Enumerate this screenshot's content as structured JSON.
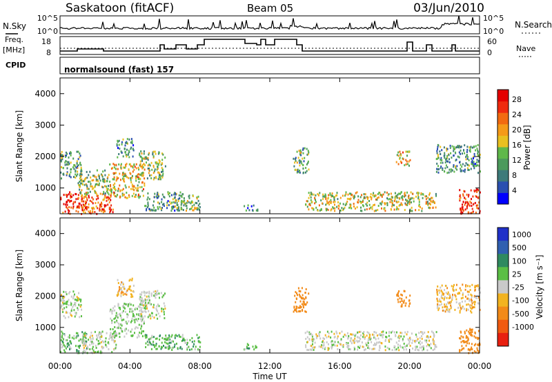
{
  "header": {
    "station": "Saskatoon (fitACF)",
    "beam": "Beam 05",
    "date": "03/Jun/2010"
  },
  "top_panels": {
    "nsky_label": "N.Sky",
    "nsearch_label": "N.Search",
    "noise_ticks_left": [
      "10^5",
      "10^0"
    ],
    "noise_ticks_right": [
      "10^5",
      "10^0"
    ],
    "freq_label_line1": "Freq.",
    "freq_label_line2": "[MHz]",
    "freq_ticks": [
      "18",
      "8"
    ],
    "nave_label": "Nave",
    "nave_ticks": [
      "60",
      "0"
    ],
    "cpid_label": "CPID",
    "cpid_value": "normalsound (fast) 157"
  },
  "x_axis": {
    "label": "Time UT",
    "ticks": [
      "00:00",
      "04:00",
      "08:00",
      "12:00",
      "16:00",
      "20:00",
      "00:00"
    ]
  },
  "power_colorbar": {
    "title": "Power [dB]",
    "ticks": [
      "28",
      "24",
      "20",
      "16",
      "12",
      "8",
      "4"
    ],
    "colors": [
      "#0000ff",
      "#2a4fb0",
      "#3d7a7a",
      "#4c9a5c",
      "#5fb84a",
      "#e8c020",
      "#f59a18",
      "#f26a10",
      "#ef2a0e",
      "#e40000"
    ]
  },
  "velocity_colorbar": {
    "title": "Velocity [m s⁻¹]",
    "ticks": [
      "1000",
      "500",
      "100",
      "25",
      "-25",
      "-100",
      "-500",
      "-1000"
    ],
    "colors": [
      "#2030c8",
      "#3060b0",
      "#2f8a60",
      "#5bbf45",
      "#c9c9c9",
      "#f2b320",
      "#f28a18",
      "#f05a10",
      "#e82010"
    ]
  },
  "chart_data": [
    {
      "type": "heatmap",
      "panel": "power",
      "ylabel": "Slant Range [km]",
      "xlabel": "",
      "x_unit": "hours UT",
      "xlim": [
        0,
        24
      ],
      "ylim": [
        180,
        4500
      ],
      "y_ticks": [
        1000,
        2000,
        3000,
        4000
      ],
      "colorbar": "power_colorbar",
      "regions": [
        {
          "t0": 0.0,
          "t1": 1.5,
          "r0": 200,
          "r1": 900,
          "dB": 26
        },
        {
          "t0": 0.0,
          "t1": 1.2,
          "r0": 1300,
          "r1": 2200,
          "dB": 12
        },
        {
          "t0": 1.2,
          "t1": 3.0,
          "r0": 200,
          "r1": 800,
          "dB": 24
        },
        {
          "t0": 1.0,
          "t1": 2.8,
          "r0": 800,
          "r1": 1600,
          "dB": 14
        },
        {
          "t0": 2.8,
          "t1": 4.8,
          "r0": 700,
          "r1": 1800,
          "dB": 18
        },
        {
          "t0": 3.2,
          "t1": 4.2,
          "r0": 2000,
          "r1": 2600,
          "dB": 10
        },
        {
          "t0": 4.5,
          "t1": 6.0,
          "r0": 1300,
          "r1": 2200,
          "dB": 14
        },
        {
          "t0": 4.8,
          "t1": 7.0,
          "r0": 300,
          "r1": 900,
          "dB": 10
        },
        {
          "t0": 6.5,
          "t1": 8.0,
          "r0": 300,
          "r1": 800,
          "dB": 14
        },
        {
          "t0": 10.5,
          "t1": 11.3,
          "r0": 300,
          "r1": 500,
          "dB": 8
        },
        {
          "t0": 13.3,
          "t1": 14.2,
          "r0": 1500,
          "r1": 2300,
          "dB": 12
        },
        {
          "t0": 14.0,
          "t1": 21.5,
          "r0": 300,
          "r1": 900,
          "dB": 16
        },
        {
          "t0": 19.2,
          "t1": 20.0,
          "r0": 1700,
          "r1": 2200,
          "dB": 18
        },
        {
          "t0": 21.5,
          "t1": 24.0,
          "r0": 1500,
          "r1": 2400,
          "dB": 10
        },
        {
          "t0": 22.8,
          "t1": 24.0,
          "r0": 200,
          "r1": 1000,
          "dB": 26
        }
      ]
    },
    {
      "type": "heatmap",
      "panel": "velocity",
      "ylabel": "Slant Range [km]",
      "xlabel": "Time UT",
      "x_unit": "hours UT",
      "xlim": [
        0,
        24
      ],
      "ylim": [
        180,
        4500
      ],
      "y_ticks": [
        1000,
        2000,
        3000,
        4000
      ],
      "colorbar": "velocity_colorbar",
      "regions": [
        {
          "t0": 0.0,
          "t1": 1.2,
          "r0": 1300,
          "r1": 2200,
          "v": 10
        },
        {
          "t0": 0.0,
          "t1": 1.5,
          "r0": 200,
          "r1": 900,
          "v": 60
        },
        {
          "t0": 1.2,
          "t1": 3.2,
          "r0": 200,
          "r1": 900,
          "v": 10
        },
        {
          "t0": 2.8,
          "t1": 4.8,
          "r0": 700,
          "r1": 1800,
          "v": 30
        },
        {
          "t0": 3.2,
          "t1": 4.2,
          "r0": 2000,
          "r1": 2600,
          "v": -60
        },
        {
          "t0": 4.5,
          "t1": 6.0,
          "r0": 1300,
          "r1": 2200,
          "v": 10
        },
        {
          "t0": 4.8,
          "t1": 8.0,
          "r0": 300,
          "r1": 800,
          "v": 80
        },
        {
          "t0": 10.5,
          "t1": 11.3,
          "r0": 300,
          "r1": 500,
          "v": 60
        },
        {
          "t0": 13.3,
          "t1": 14.2,
          "r0": 1500,
          "r1": 2300,
          "v": -300
        },
        {
          "t0": 14.0,
          "t1": 21.5,
          "r0": 300,
          "r1": 900,
          "v": 0
        },
        {
          "t0": 19.2,
          "t1": 20.0,
          "r0": 1700,
          "r1": 2200,
          "v": -300
        },
        {
          "t0": 21.5,
          "t1": 24.0,
          "r0": 1500,
          "r1": 2400,
          "v": -60
        },
        {
          "t0": 22.8,
          "t1": 24.0,
          "r0": 200,
          "r1": 1000,
          "v": -300
        }
      ]
    }
  ]
}
